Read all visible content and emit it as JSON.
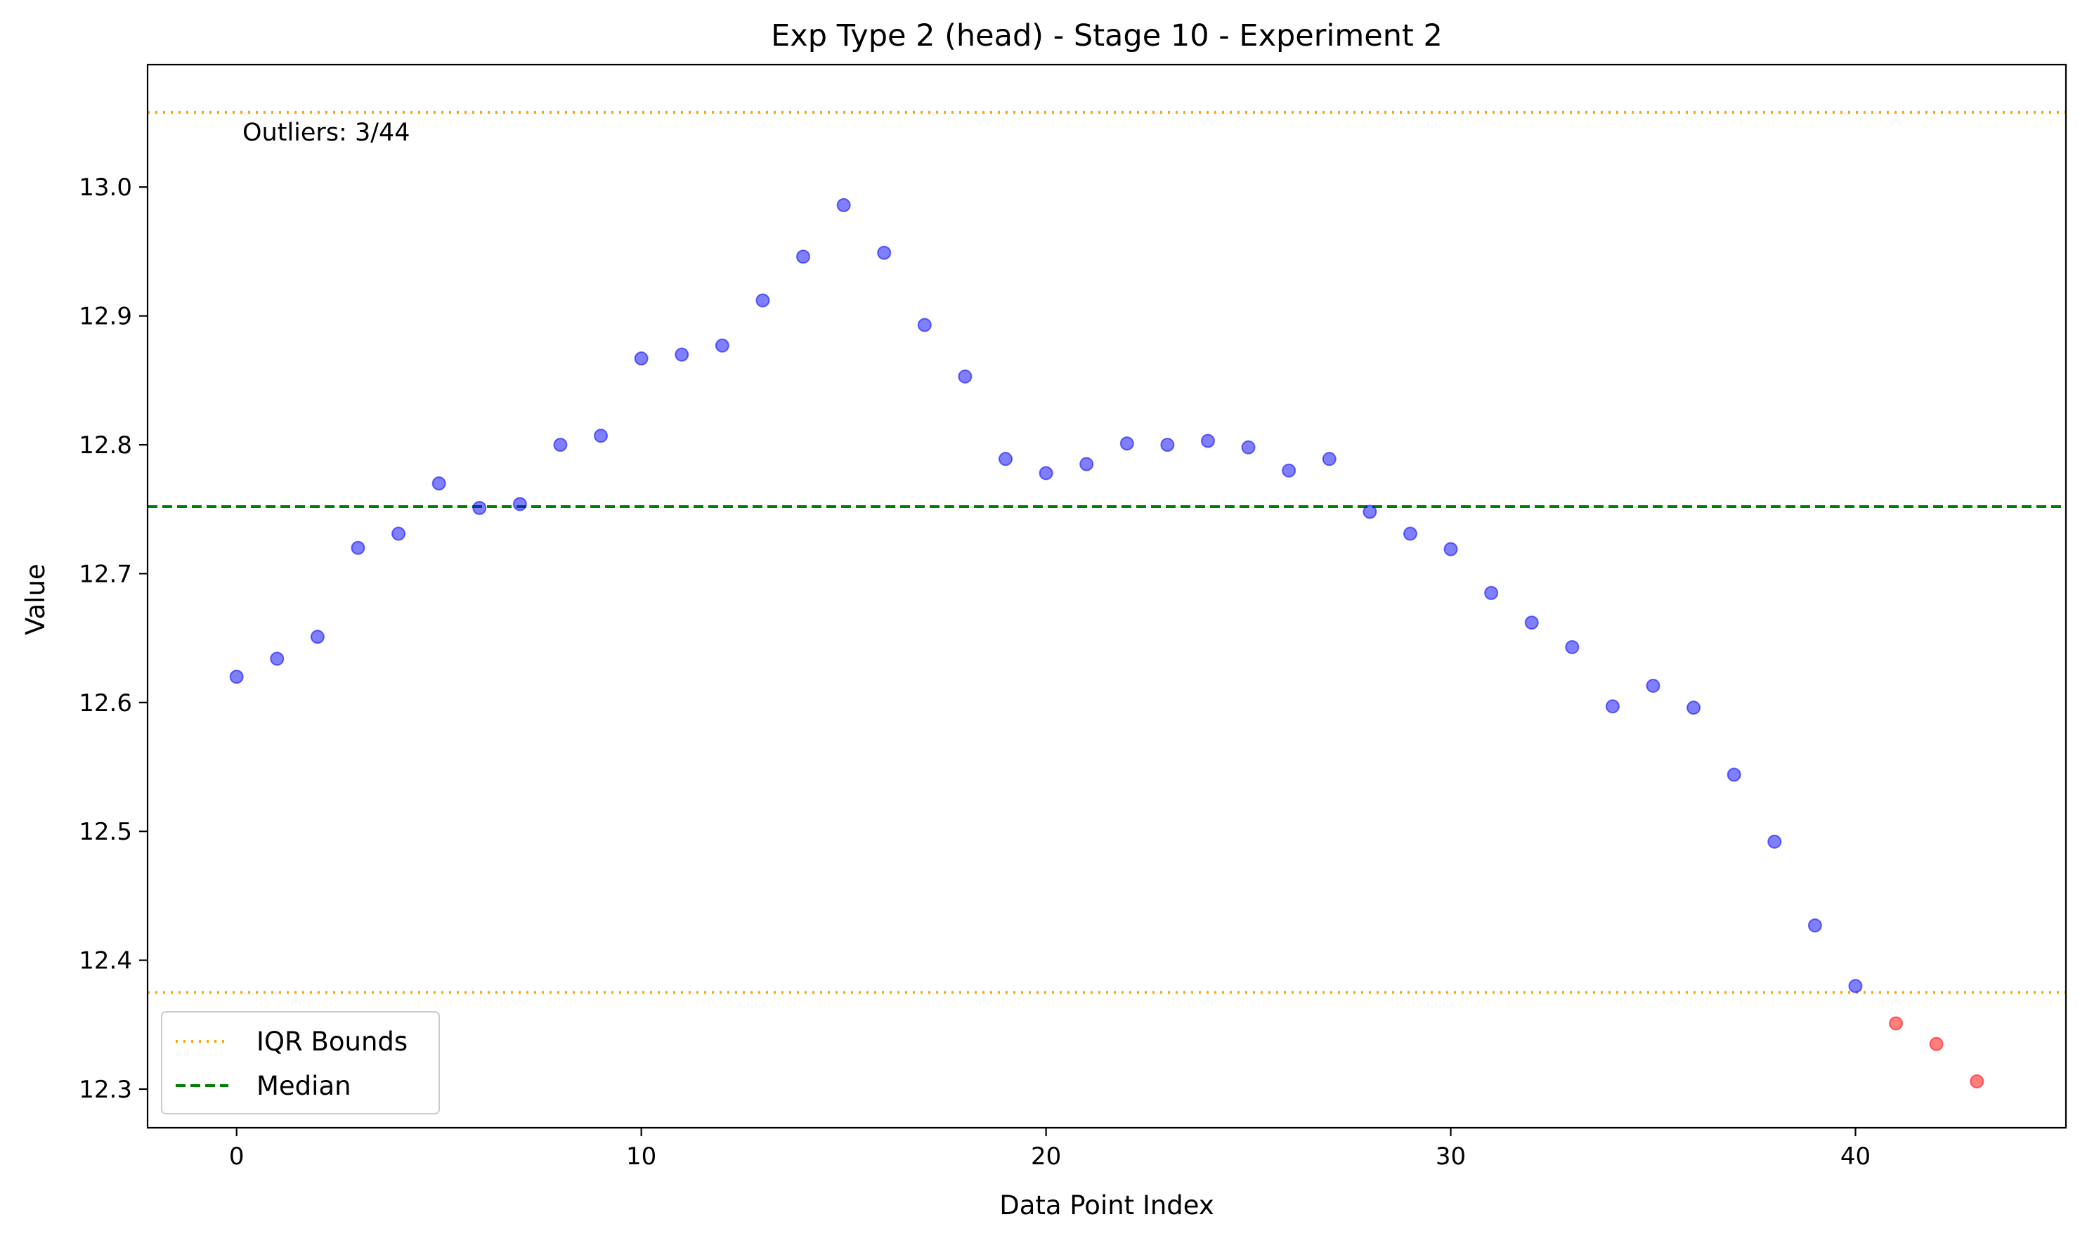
{
  "chart_data": {
    "type": "scatter",
    "title": "Exp Type 2 (head) - Stage 10 - Experiment 2",
    "xlabel": "Data Point Index",
    "ylabel": "Value",
    "xlim": [
      -2.2,
      45.2
    ],
    "ylim": [
      12.27,
      13.095
    ],
    "xticks": [
      0,
      10,
      20,
      30,
      40
    ],
    "yticks": [
      12.3,
      12.4,
      12.5,
      12.6,
      12.7,
      12.8,
      12.9,
      13.0
    ],
    "xtick_labels": [
      "0",
      "10",
      "20",
      "30",
      "40"
    ],
    "ytick_labels": [
      "12.3",
      "12.4",
      "12.5",
      "12.6",
      "12.7",
      "12.8",
      "12.9",
      "13.0"
    ],
    "grid": false,
    "series": [
      {
        "role": "normal",
        "color": "#0000ff",
        "x": [
          0,
          1,
          2,
          3,
          4,
          5,
          6,
          7,
          8,
          9,
          10,
          11,
          12,
          13,
          14,
          15,
          16,
          17,
          18,
          19,
          20,
          21,
          22,
          23,
          24,
          25,
          26,
          27,
          28,
          29,
          30,
          31,
          32,
          33,
          34,
          35,
          36,
          37,
          38,
          39,
          40
        ],
        "y": [
          12.62,
          12.634,
          12.651,
          12.72,
          12.731,
          12.77,
          12.751,
          12.754,
          12.8,
          12.807,
          12.867,
          12.87,
          12.877,
          12.912,
          12.946,
          12.986,
          12.949,
          12.893,
          12.853,
          12.789,
          12.778,
          12.785,
          12.801,
          12.8,
          12.803,
          12.798,
          12.78,
          12.789,
          12.748,
          12.731,
          12.719,
          12.685,
          12.662,
          12.643,
          12.597,
          12.613,
          12.596,
          12.544,
          12.492,
          12.427,
          12.38
        ]
      },
      {
        "role": "outlier",
        "color": "#ff0000",
        "x": [
          41,
          42,
          43
        ],
        "y": [
          12.351,
          12.335,
          12.306
        ]
      }
    ],
    "reference_lines": [
      {
        "label": "IQR Bounds",
        "value": 13.058,
        "color": "#ffa500",
        "style": "dotted"
      },
      {
        "label": "IQR Bounds",
        "value": 12.375,
        "color": "#ffa500",
        "style": "dotted"
      },
      {
        "label": "Median",
        "value": 12.752,
        "color": "#008000",
        "style": "dashed"
      }
    ],
    "legend": {
      "placement": "lower-left",
      "entries": [
        {
          "label": "IQR Bounds",
          "color": "#ffa500",
          "style": "dotted"
        },
        {
          "label": "Median",
          "color": "#008000",
          "style": "dashed"
        }
      ]
    },
    "annotation": "Outliers: 3/44"
  }
}
